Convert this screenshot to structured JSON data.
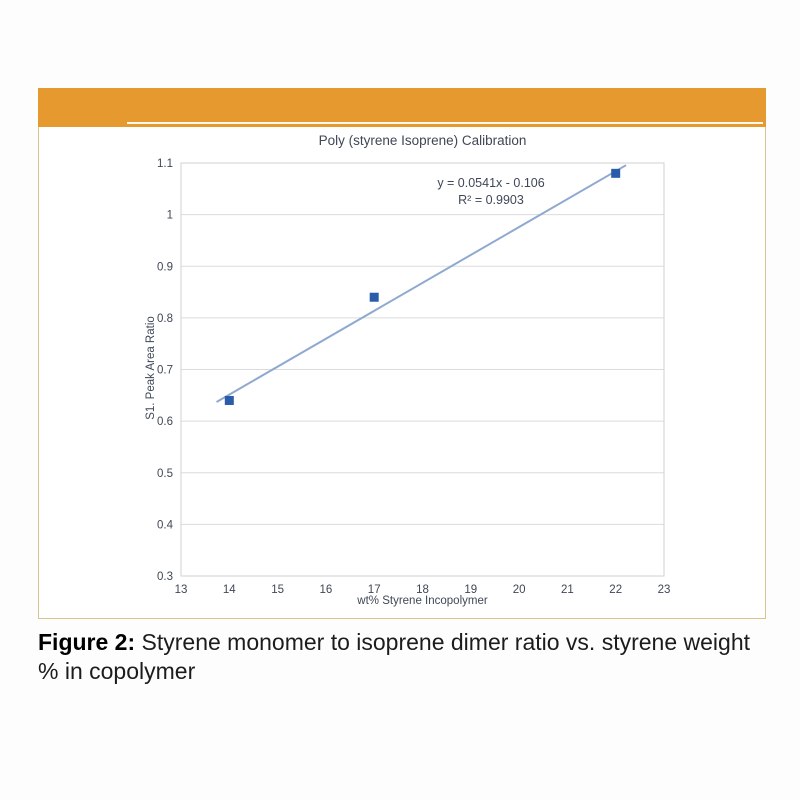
{
  "figure_card": {
    "header_color": "#e5992e",
    "body_border_color": "#d8c48f"
  },
  "chart_data": {
    "type": "scatter",
    "title": "Poly (styrene Isoprene) Calibration",
    "xlabel": "wt% Styrene Incopolymer",
    "ylabel": "S1. Peak Area Ratio",
    "points": [
      {
        "x": 14,
        "y": 0.64
      },
      {
        "x": 17,
        "y": 0.84
      },
      {
        "x": 22,
        "y": 1.08
      }
    ],
    "trendline": {
      "slope": 0.0541,
      "intercept": -0.106,
      "x_start": 13.75,
      "x_end": 22.2,
      "equation_label": "y = 0.0541x - 0.106",
      "r_squared_label": "R² = 0.9903"
    },
    "xlim": [
      13,
      23
    ],
    "x_tick_step": 1,
    "x_tick_labels": [
      "13",
      "14",
      "15",
      "16",
      "17",
      "18",
      "19",
      "20",
      "21",
      "22",
      "23"
    ],
    "ylim": [
      0.3,
      1.1
    ],
    "y_tick_step": 0.1,
    "y_tick_labels": [
      "0.3",
      "0.4",
      "0.5",
      "0.6",
      "0.7",
      "0.8",
      "0.9",
      "1",
      "1.1"
    ],
    "grid": "horizontal",
    "legend": "none",
    "colors": {
      "marker": "#2a5caa",
      "trendline": "#8fa9d0",
      "gridline": "#dbdbdb",
      "plot_border": "#d2d2d2",
      "text": "#3f4756"
    }
  },
  "caption": {
    "label": "Figure 2:",
    "text": " Styrene monomer to isoprene dimer ratio vs. styrene weight % in copolymer"
  }
}
